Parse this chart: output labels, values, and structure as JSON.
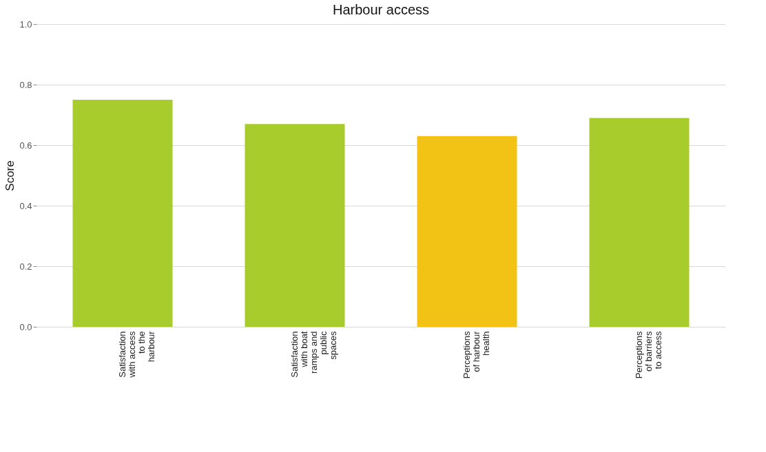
{
  "chart_data": {
    "type": "bar",
    "title": "Harbour access",
    "ylabel": "Score",
    "categories": [
      "Satisfaction with access to the harbour",
      "Satisfaction with boat ramps and public spaces",
      "Perceptions of harbour health",
      "Perceptions of barriers to access"
    ],
    "values": [
      0.75,
      0.67,
      0.63,
      0.69
    ],
    "colors": [
      "#a8cc2c",
      "#a8cc2c",
      "#f2c314",
      "#a8cc2c"
    ],
    "ylim": [
      0,
      1.0
    ],
    "yticks": [
      {
        "value": 0,
        "label": "0.0"
      },
      {
        "value": 0.2,
        "label": "0.2"
      },
      {
        "value": 0.4,
        "label": "0.4"
      },
      {
        "value": 0.6,
        "label": "0.6"
      },
      {
        "value": 0.8,
        "label": "0.8"
      },
      {
        "value": 1.0,
        "label": "1.0"
      }
    ],
    "grid": "y"
  }
}
